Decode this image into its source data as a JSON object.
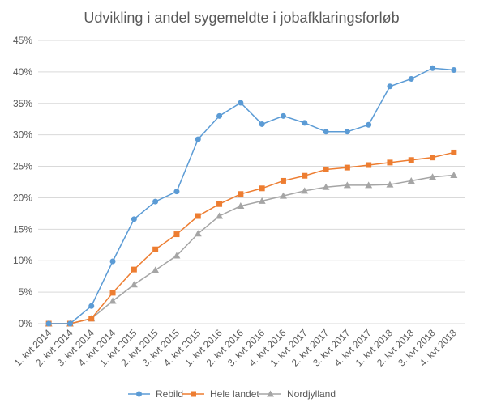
{
  "chart_data": {
    "type": "line",
    "title": "Udvikling i andel sygemeldte i jobafklaringsforløb",
    "xlabel": "",
    "ylabel": "",
    "ylim": [
      0,
      45
    ],
    "y_step": 5,
    "y_format": "percent",
    "grid": true,
    "legend_position": "bottom",
    "categories": [
      "1. kvt 2014",
      "2. kvt 2014",
      "3. kvt 2014",
      "4. kvt 2014",
      "1. kvt 2015",
      "2. kvt 2015",
      "3. kvt 2015",
      "4. kvt 2015",
      "1. kvt 2016",
      "2. kvt 2016",
      "3. kvt 2016",
      "4. kvt 2016",
      "1. kvt 2017",
      "2. kvt 2017",
      "3. kvt 2017",
      "4. kvt 2017",
      "1. kvt 2018",
      "2. kvt 2018",
      "3. kvt 2018",
      "4. kvt 2018"
    ],
    "series": [
      {
        "name": "Rebild",
        "color": "#5b9bd5",
        "marker": "circle",
        "values": [
          0,
          0,
          2.8,
          9.9,
          16.6,
          19.4,
          21.0,
          29.3,
          33.0,
          35.1,
          31.7,
          33.0,
          31.9,
          30.5,
          30.5,
          31.6,
          37.7,
          38.9,
          40.6,
          40.3
        ]
      },
      {
        "name": "Hele landet",
        "color": "#ed7d31",
        "marker": "square",
        "values": [
          0,
          0,
          0.8,
          4.9,
          8.6,
          11.8,
          14.2,
          17.1,
          19.0,
          20.6,
          21.5,
          22.7,
          23.5,
          24.5,
          24.8,
          25.2,
          25.6,
          26.0,
          26.4,
          27.2
        ]
      },
      {
        "name": "Nordjylland",
        "color": "#a5a5a5",
        "marker": "triangle",
        "values": [
          0,
          0,
          0.8,
          3.6,
          6.2,
          8.5,
          10.8,
          14.3,
          17.1,
          18.7,
          19.5,
          20.3,
          21.1,
          21.7,
          22.0,
          22.0,
          22.1,
          22.7,
          23.3,
          23.6
        ]
      }
    ]
  }
}
